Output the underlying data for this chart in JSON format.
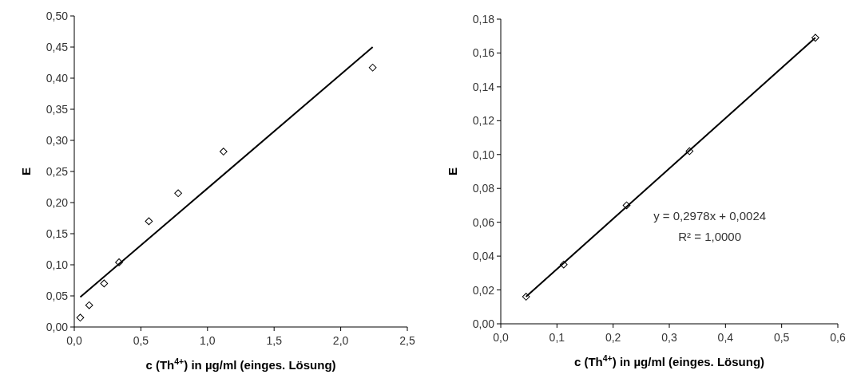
{
  "chart_data": [
    {
      "type": "scatter",
      "xlabel": "c (Th$^{4+}$) in µg/ml (einges. Lösung)",
      "ylabel": "E",
      "marker": "diamond",
      "grid": false,
      "xlim": [
        0,
        2.5
      ],
      "ylim": [
        0,
        0.5
      ],
      "xticks": [
        {
          "value": 0,
          "label": "0,0"
        },
        {
          "value": 0.5,
          "label": "0,5"
        },
        {
          "value": 1,
          "label": "1,0"
        },
        {
          "value": 1.5,
          "label": "1,5"
        },
        {
          "value": 2,
          "label": "2,0"
        },
        {
          "value": 2.5,
          "label": "2,5"
        }
      ],
      "yticks": [
        {
          "value": 0,
          "label": "0,00"
        },
        {
          "value": 0.05,
          "label": "0,05"
        },
        {
          "value": 0.1,
          "label": "0,10"
        },
        {
          "value": 0.15,
          "label": "0,15"
        },
        {
          "value": 0.2,
          "label": "0,20"
        },
        {
          "value": 0.25,
          "label": "0,25"
        },
        {
          "value": 0.3,
          "label": "0,30"
        },
        {
          "value": 0.35,
          "label": "0,35"
        },
        {
          "value": 0.4,
          "label": "0,40"
        },
        {
          "value": 0.45,
          "label": "0,45"
        },
        {
          "value": 0.5,
          "label": "0,50"
        }
      ],
      "series": [
        {
          "color": "#000000",
          "x": [
            0.045,
            0.112,
            0.224,
            0.336,
            0.56,
            0.78,
            1.12,
            2.24
          ],
          "values": [
            0.015,
            0.035,
            0.07,
            0.104,
            0.17,
            0.215,
            0.282,
            0.417
          ]
        },
        {
          "type": "line",
          "color": "#000000",
          "marker": "none",
          "x": [
            0.045,
            2.24
          ],
          "values": [
            0.048,
            0.45
          ]
        }
      ]
    },
    {
      "type": "scatter",
      "xlabel": "c  (Th$^{4+}$) in µg/ml (einges. Lösung)",
      "ylabel": "E",
      "marker": "diamond",
      "grid": false,
      "xlim": [
        0,
        0.6
      ],
      "ylim": [
        0,
        0.18
      ],
      "xticks": [
        {
          "value": 0,
          "label": "0,0"
        },
        {
          "value": 0.1,
          "label": "0,1"
        },
        {
          "value": 0.2,
          "label": "0,2"
        },
        {
          "value": 0.3,
          "label": "0,3"
        },
        {
          "value": 0.4,
          "label": "0,4"
        },
        {
          "value": 0.5,
          "label": "0,5"
        },
        {
          "value": 0.6,
          "label": "0,6"
        }
      ],
      "yticks": [
        {
          "value": 0,
          "label": "0,00"
        },
        {
          "value": 0.02,
          "label": "0,02"
        },
        {
          "value": 0.04,
          "label": "0,04"
        },
        {
          "value": 0.06,
          "label": "0,06"
        },
        {
          "value": 0.08,
          "label": "0,08"
        },
        {
          "value": 0.1,
          "label": "0,10"
        },
        {
          "value": 0.12,
          "label": "0,12"
        },
        {
          "value": 0.14,
          "label": "0,14"
        },
        {
          "value": 0.16,
          "label": "0,16"
        },
        {
          "value": 0.18,
          "label": "0,18"
        }
      ],
      "annotations": [
        "y = 0,2978x + 0,0024",
        "R² = 1,0000"
      ],
      "series": [
        {
          "color": "#000000",
          "x": [
            0.045,
            0.112,
            0.224,
            0.336,
            0.56
          ],
          "values": [
            0.016,
            0.035,
            0.07,
            0.102,
            0.169
          ]
        },
        {
          "type": "line",
          "color": "#000000",
          "marker": "none",
          "x": [
            0.045,
            0.56
          ],
          "values": [
            0.016,
            0.169
          ]
        }
      ]
    }
  ]
}
